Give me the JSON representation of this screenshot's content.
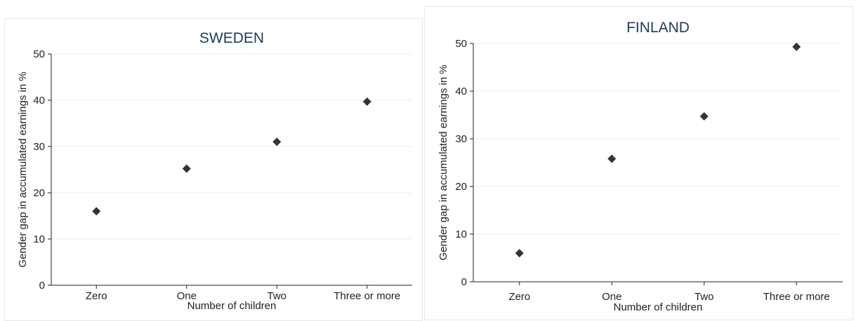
{
  "chart_data": [
    {
      "type": "scatter",
      "title": "SWEDEN",
      "xlabel": "Number of children",
      "ylabel": "Gender gap in accumulated earnings in %",
      "categories": [
        "Zero",
        "One",
        "Two",
        "Three or more"
      ],
      "values": [
        16,
        25.2,
        31,
        39.7
      ],
      "ylim": [
        0,
        50
      ],
      "yticks": [
        0,
        10,
        20,
        30,
        40,
        50
      ],
      "grid": true,
      "marker": "diamond",
      "marker_color": "#333333"
    },
    {
      "type": "scatter",
      "title": "FINLAND",
      "xlabel": "Number of children",
      "ylabel": "Gender gap in accumulated earnings in %",
      "categories": [
        "Zero",
        "One",
        "Two",
        "Three or more"
      ],
      "values": [
        6,
        25.8,
        34.7,
        49.3
      ],
      "ylim": [
        0,
        50
      ],
      "yticks": [
        0,
        10,
        20,
        30,
        40,
        50
      ],
      "grid": true,
      "marker": "diamond",
      "marker_color": "#333333"
    }
  ]
}
